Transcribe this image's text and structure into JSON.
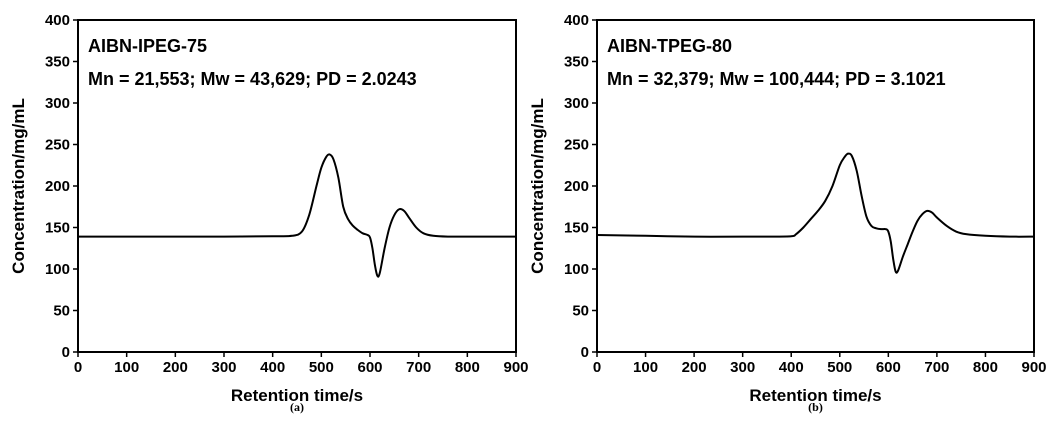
{
  "chart_data": [
    {
      "type": "line",
      "panel_label": "(a)",
      "xlabel": "Retention time/s",
      "ylabel": "Concentration/mg/mL",
      "xlim": [
        0,
        900
      ],
      "ylim": [
        0,
        400
      ],
      "xticks": [
        0,
        100,
        200,
        300,
        400,
        500,
        600,
        700,
        800,
        900
      ],
      "yticks": [
        0,
        50,
        100,
        150,
        200,
        250,
        300,
        350,
        400
      ],
      "grid": false,
      "annotations": [
        "AIBN-IPEG-75",
        "Mn = 21,553; Mw = 43,629; PD = 2.0243"
      ],
      "series": [
        {
          "x": [
            0,
            100,
            200,
            300,
            400,
            440,
            460,
            475,
            490,
            500,
            510,
            517,
            525,
            535,
            545,
            555,
            565,
            575,
            585,
            595,
            600,
            605,
            610,
            615,
            620,
            630,
            640,
            650,
            660,
            670,
            680,
            695,
            710,
            730,
            760,
            800,
            850,
            900
          ],
          "y": [
            139,
            139,
            139,
            139,
            139.5,
            140,
            145,
            165,
            200,
            222,
            235,
            238,
            232,
            210,
            175,
            160,
            152,
            147,
            143,
            141,
            138,
            125,
            105,
            92,
            95,
            125,
            150,
            165,
            172,
            170,
            162,
            150,
            143,
            140,
            139,
            139,
            139,
            139
          ]
        }
      ]
    },
    {
      "type": "line",
      "panel_label": "(b)",
      "xlabel": "Retention time/s",
      "ylabel": "Concentration/mg/mL",
      "xlim": [
        0,
        900
      ],
      "ylim": [
        0,
        400
      ],
      "xticks": [
        0,
        100,
        200,
        300,
        400,
        500,
        600,
        700,
        800,
        900
      ],
      "yticks": [
        0,
        50,
        100,
        150,
        200,
        250,
        300,
        350,
        400
      ],
      "grid": false,
      "annotations": [
        "AIBN-TPEG-80",
        "Mn = 32,379; Mw = 100,444; PD = 3.1021"
      ],
      "series": [
        {
          "x": [
            0,
            100,
            200,
            300,
            350,
            400,
            410,
            425,
            440,
            455,
            470,
            485,
            500,
            510,
            517,
            525,
            535,
            545,
            555,
            565,
            575,
            585,
            595,
            600,
            605,
            610,
            615,
            620,
            630,
            640,
            650,
            660,
            670,
            680,
            690,
            700,
            720,
            740,
            760,
            800,
            850,
            900
          ],
          "y": [
            141,
            140,
            139,
            139,
            139,
            139.5,
            142,
            150,
            160,
            170,
            182,
            200,
            225,
            235,
            239,
            236,
            218,
            188,
            163,
            152,
            149,
            148,
            148,
            145,
            133,
            112,
            97,
            98,
            115,
            130,
            145,
            158,
            166,
            170,
            168,
            162,
            152,
            145,
            142,
            140,
            139,
            139
          ]
        }
      ]
    }
  ]
}
